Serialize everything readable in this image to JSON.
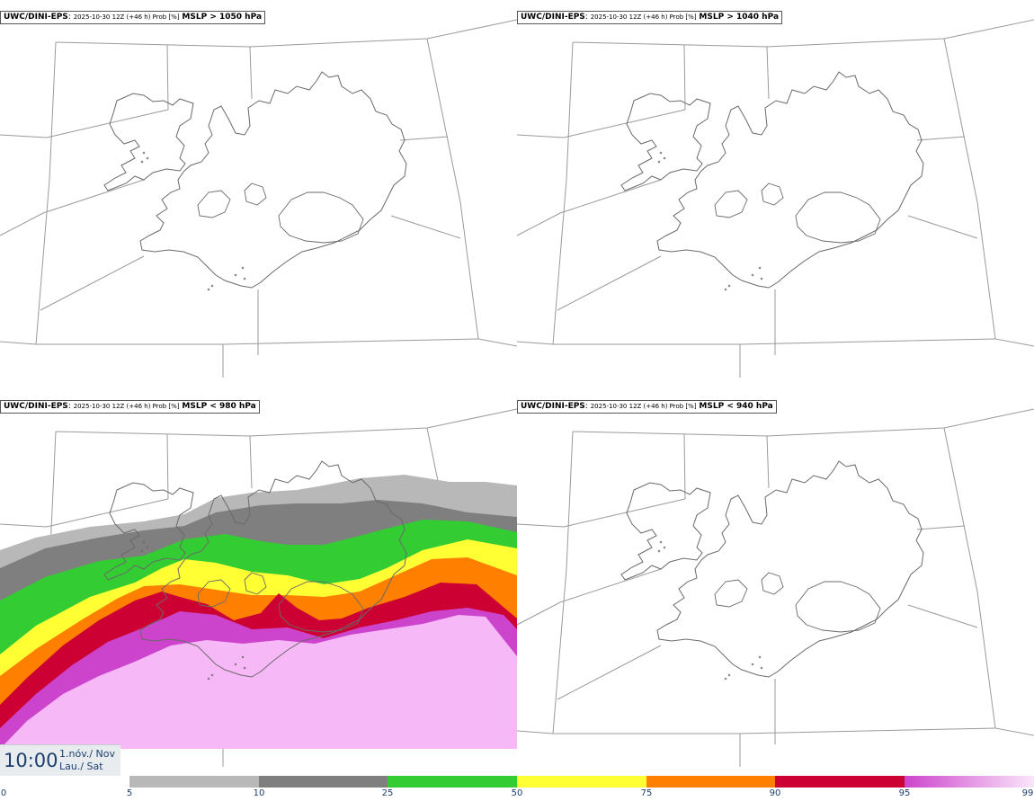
{
  "panels": [
    {
      "model": "UWC/DINI-EPS",
      "run": "2025-10-30 12Z (+46 h) Prob [%]",
      "threshold": "MSLP > 1050 hPa",
      "filled": false
    },
    {
      "model": "UWC/DINI-EPS",
      "run": "2025-10-30 12Z (+46 h) Prob [%]",
      "threshold": "MSLP > 1040 hPa",
      "filled": false
    },
    {
      "model": "UWC/DINI-EPS",
      "run": "2025-10-30 12Z (+46 h) Prob [%]",
      "threshold": "MSLP < 980 hPa",
      "filled": true
    },
    {
      "model": "UWC/DINI-EPS",
      "run": "2025-10-30 12Z (+46 h) Prob [%]",
      "threshold": "MSLP < 940 hPa",
      "filled": false
    }
  ],
  "valid_time": {
    "time": "10:00",
    "date": "1.nóv./ Nov",
    "day": "Lau./ Sat"
  },
  "colorbar": {
    "ticks": [
      "0",
      "5",
      "10",
      "25",
      "50",
      "75",
      "90",
      "95",
      "99"
    ],
    "colors": [
      "#ffffff",
      "#b8b8b8",
      "#7f7f7f",
      "#33cc33",
      "#ffff33",
      "#ff7f00",
      "#cc0033",
      "#cc44cc",
      "#f7b8f7"
    ]
  }
}
